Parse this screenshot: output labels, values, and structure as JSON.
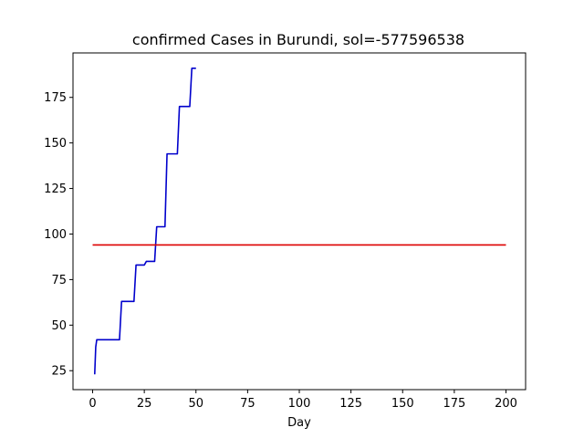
{
  "chart_data": {
    "type": "line",
    "title": "confirmed Cases in Burundi, sol=-577596538",
    "xlabel": "Day",
    "ylabel": "",
    "xlim": [
      -9.5,
      209.5
    ],
    "ylim": [
      14.6,
      199.4
    ],
    "xticks": [
      0,
      25,
      50,
      75,
      100,
      125,
      150,
      175,
      200
    ],
    "yticks": [
      25,
      50,
      75,
      100,
      125,
      150,
      175
    ],
    "grid": false,
    "legend": "none",
    "series": [
      {
        "color": "#0000cc",
        "points": [
          [
            1,
            23
          ],
          [
            1.5,
            38
          ],
          [
            2,
            42
          ],
          [
            13,
            42
          ],
          [
            14,
            63
          ],
          [
            20,
            63
          ],
          [
            21,
            83
          ],
          [
            25,
            83
          ],
          [
            26,
            85
          ],
          [
            30,
            85
          ],
          [
            31,
            104
          ],
          [
            35,
            104
          ],
          [
            36,
            144
          ],
          [
            41,
            144
          ],
          [
            42,
            170
          ],
          [
            47,
            170
          ],
          [
            48,
            191
          ],
          [
            50,
            191
          ]
        ]
      },
      {
        "color": "#dd0000",
        "points": [
          [
            0,
            94
          ],
          [
            200,
            94
          ]
        ]
      }
    ]
  }
}
